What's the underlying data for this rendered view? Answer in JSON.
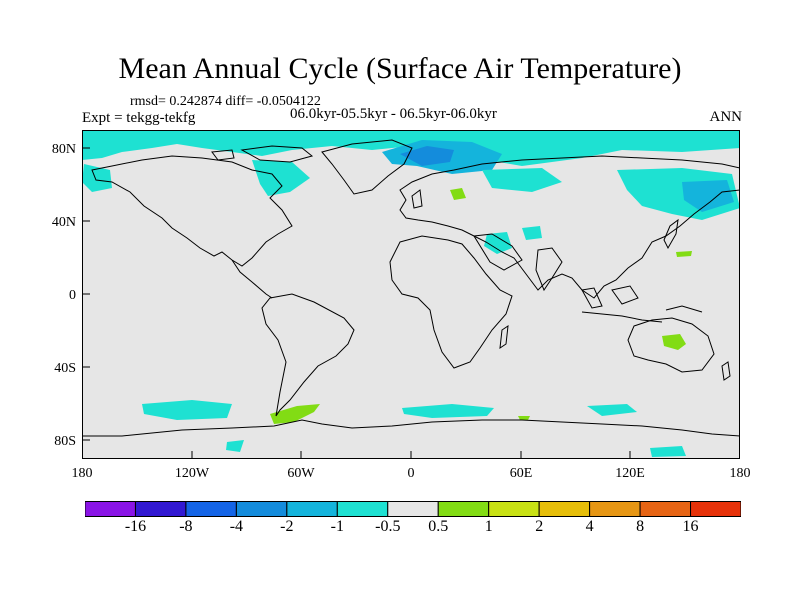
{
  "title": "Mean Annual Cycle (Surface Air Temperature)",
  "stats": "rmsd= 0.242874 diff= -0.0504122",
  "experiment": "Expt = tekgg-tekfg",
  "subtitle": "06.0kyr-05.5kyr - 06.5kyr-06.0kyr",
  "season": "ANN",
  "lat_labels": [
    "80N",
    "40N",
    "0",
    "40S",
    "80S"
  ],
  "lon_labels": [
    "180",
    "120W",
    "60W",
    "0",
    "60E",
    "120E",
    "180"
  ],
  "colorbar": {
    "labels": [
      "-16",
      "-8",
      "-4",
      "-2",
      "-1",
      "-0.5",
      "0.5",
      "1",
      "2",
      "4",
      "8",
      "16"
    ],
    "colors": [
      "#8a14e6",
      "#3219d2",
      "#1464e6",
      "#148cdc",
      "#14b4dc",
      "#1ee1d2",
      "#e6e6e6",
      "#82dc14",
      "#c8e114",
      "#e6be0a",
      "#e69614",
      "#e66414",
      "#e6320a"
    ]
  },
  "map": {
    "background": "#e6e6e6",
    "cool_color": "#1ee1d2",
    "cold_color": "#14b4dc",
    "coldest_color": "#148cdc",
    "warm_color": "#82dc14"
  }
}
